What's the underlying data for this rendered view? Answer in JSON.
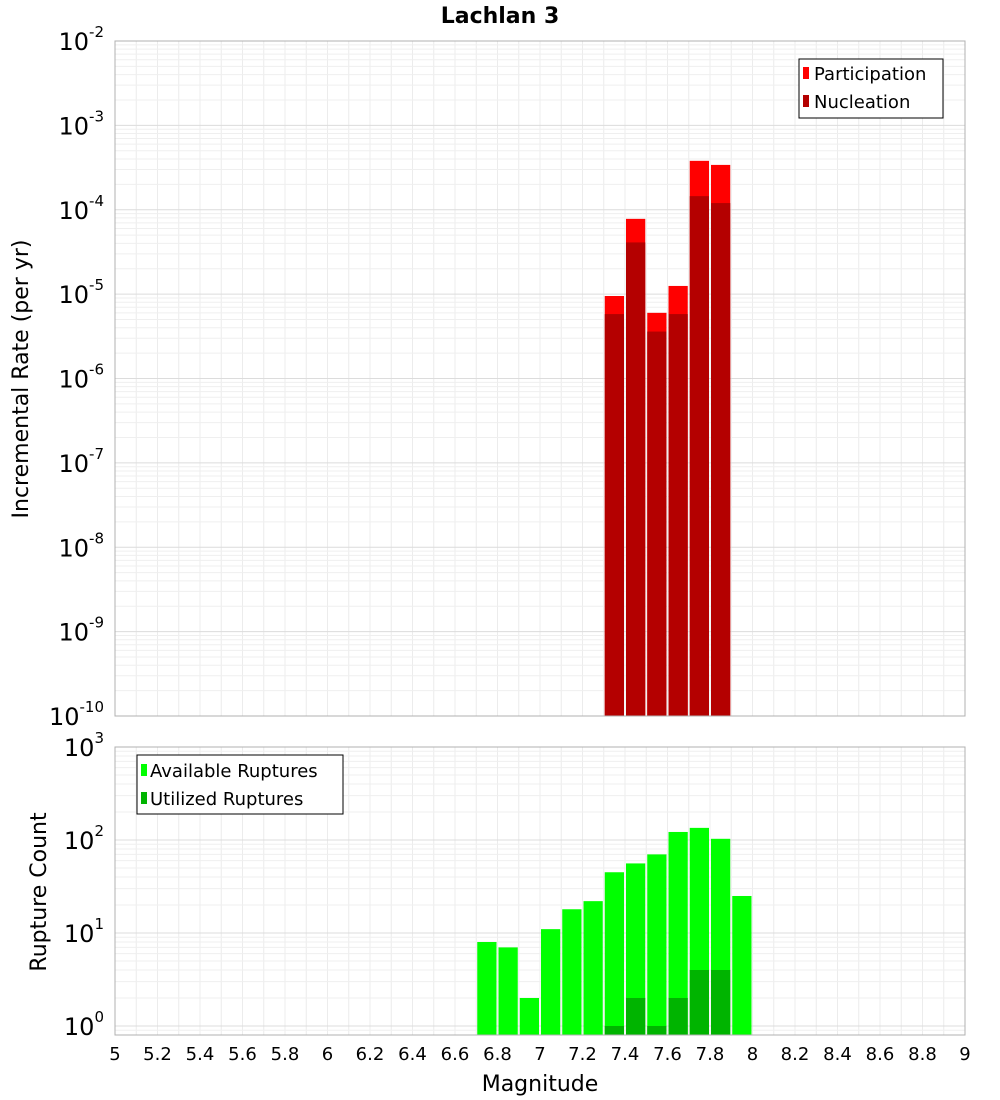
{
  "title": "Lachlan 3",
  "chart_data": [
    {
      "type": "bar",
      "title": "Lachlan 3",
      "ylabel": "Incremental Rate (per yr)",
      "xlabel": "",
      "xlim": [
        5,
        9
      ],
      "ylim": [
        1e-10,
        0.01
      ],
      "yscale": "log",
      "grid": true,
      "legend_position": "top-right",
      "x_ticks": [
        "5",
        "5.2",
        "5.4",
        "5.6",
        "5.8",
        "6",
        "6.2",
        "6.4",
        "6.6",
        "6.8",
        "7",
        "7.2",
        "7.4",
        "7.6",
        "7.8",
        "8",
        "8.2",
        "8.4",
        "8.6",
        "8.8",
        "9"
      ],
      "y_ticks": [
        {
          "base": "10",
          "exp": "-10"
        },
        {
          "base": "10",
          "exp": "-9"
        },
        {
          "base": "10",
          "exp": "-8"
        },
        {
          "base": "10",
          "exp": "-7"
        },
        {
          "base": "10",
          "exp": "-6"
        },
        {
          "base": "10",
          "exp": "-5"
        },
        {
          "base": "10",
          "exp": "-4"
        },
        {
          "base": "10",
          "exp": "-3"
        },
        {
          "base": "10",
          "exp": "-2"
        }
      ],
      "x": [
        7.35,
        7.45,
        7.55,
        7.65,
        7.75,
        7.85
      ],
      "series": [
        {
          "name": "Participation",
          "color": "#ff0000",
          "values": [
            9.5e-06,
            7.8e-05,
            6e-06,
            1.25e-05,
            0.00038,
            0.00034
          ]
        },
        {
          "name": "Nucleation",
          "color": "#b40000",
          "values": [
            5.8e-06,
            4.1e-05,
            3.6e-06,
            5.8e-06,
            0.000145,
            0.00012
          ]
        }
      ]
    },
    {
      "type": "bar",
      "title": "",
      "ylabel": "Rupture Count",
      "xlabel": "Magnitude",
      "xlim": [
        5,
        9
      ],
      "ylim": [
        0.8,
        1000
      ],
      "yscale": "log",
      "grid": true,
      "legend_position": "top-left",
      "y_ticks": [
        {
          "base": "10",
          "exp": "0",
          "value": 1
        },
        {
          "base": "10",
          "exp": "1",
          "value": 10
        },
        {
          "base": "10",
          "exp": "2",
          "value": 100
        },
        {
          "base": "10",
          "exp": "3",
          "value": 1000
        }
      ],
      "x": [
        6.75,
        6.85,
        6.95,
        7.05,
        7.15,
        7.25,
        7.35,
        7.45,
        7.55,
        7.65,
        7.75,
        7.85,
        7.95
      ],
      "series": [
        {
          "name": "Available Ruptures",
          "color": "#00ff00",
          "values": [
            8,
            7,
            2,
            11,
            18,
            22,
            45,
            56,
            70,
            122,
            135,
            103,
            25
          ]
        },
        {
          "name": "Utilized Ruptures",
          "color": "#00b400",
          "values": [
            0,
            0,
            0,
            0,
            0,
            0,
            1,
            2,
            1,
            2,
            4,
            4,
            0
          ]
        }
      ]
    }
  ]
}
